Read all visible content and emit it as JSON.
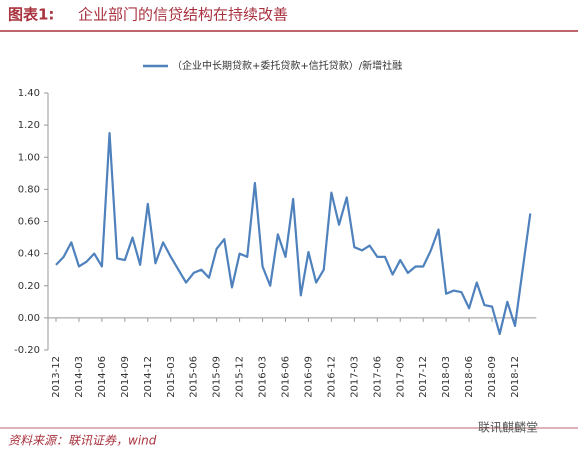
{
  "header": {
    "figure_label": "图表1:",
    "title": "企业部门的信贷结构在持续改善"
  },
  "chart_data": {
    "type": "line",
    "categories": [
      "2013-12",
      null,
      null,
      "2014-03",
      null,
      null,
      "2014-06",
      null,
      null,
      "2014-09",
      null,
      null,
      "2014-12",
      null,
      null,
      "2015-03",
      null,
      null,
      "2015-06",
      null,
      null,
      "2015-09",
      null,
      null,
      "2015-12",
      null,
      null,
      "2016-03",
      null,
      null,
      "2016-06",
      null,
      null,
      "2016-09",
      null,
      null,
      "2016-12",
      null,
      null,
      "2017-03",
      null,
      null,
      "2017-06",
      null,
      null,
      "2017-09",
      null,
      null,
      "2017-12",
      null,
      null,
      "2018-03",
      null,
      null,
      "2018-06",
      null,
      null,
      "2018-09",
      null,
      null,
      "2018-12",
      null,
      null
    ],
    "series": [
      {
        "name": "（企业中长期贷款+委托贷款+信托贷款）/新增社融",
        "color": "#4f81bd",
        "values": [
          0.33,
          0.38,
          0.47,
          0.32,
          0.35,
          0.4,
          0.32,
          1.15,
          0.37,
          0.36,
          0.5,
          0.33,
          0.71,
          0.34,
          0.47,
          0.38,
          0.3,
          0.22,
          0.28,
          0.3,
          0.25,
          0.43,
          0.49,
          0.19,
          0.4,
          0.38,
          0.84,
          0.32,
          0.2,
          0.52,
          0.38,
          0.74,
          0.14,
          0.41,
          0.22,
          0.3,
          0.78,
          0.58,
          0.75,
          0.44,
          0.42,
          0.45,
          0.38,
          0.38,
          0.27,
          0.36,
          0.28,
          0.32,
          0.32,
          0.42,
          0.55,
          0.15,
          0.17,
          0.16,
          0.06,
          0.22,
          0.08,
          0.07,
          -0.1,
          0.1,
          -0.05,
          0.3,
          0.65
        ]
      }
    ],
    "ylim": [
      -0.2,
      1.4
    ],
    "yticks": [
      {
        "value": -0.2,
        "label": "-0.20"
      },
      {
        "value": 0,
        "label": "0.00"
      },
      {
        "value": 0.2,
        "label": "0.20"
      },
      {
        "value": 0.4,
        "label": "0.40"
      },
      {
        "value": 0.6,
        "label": "0.60"
      },
      {
        "value": 0.8,
        "label": "0.80"
      },
      {
        "value": 1.0,
        "label": "1.00"
      },
      {
        "value": 1.2,
        "label": "1.20"
      },
      {
        "value": 1.4,
        "label": "1.40"
      }
    ],
    "grid": false
  },
  "footer": {
    "source": "资料来源：联讯证券，wind",
    "watermark": "联讯麒麟堂"
  }
}
